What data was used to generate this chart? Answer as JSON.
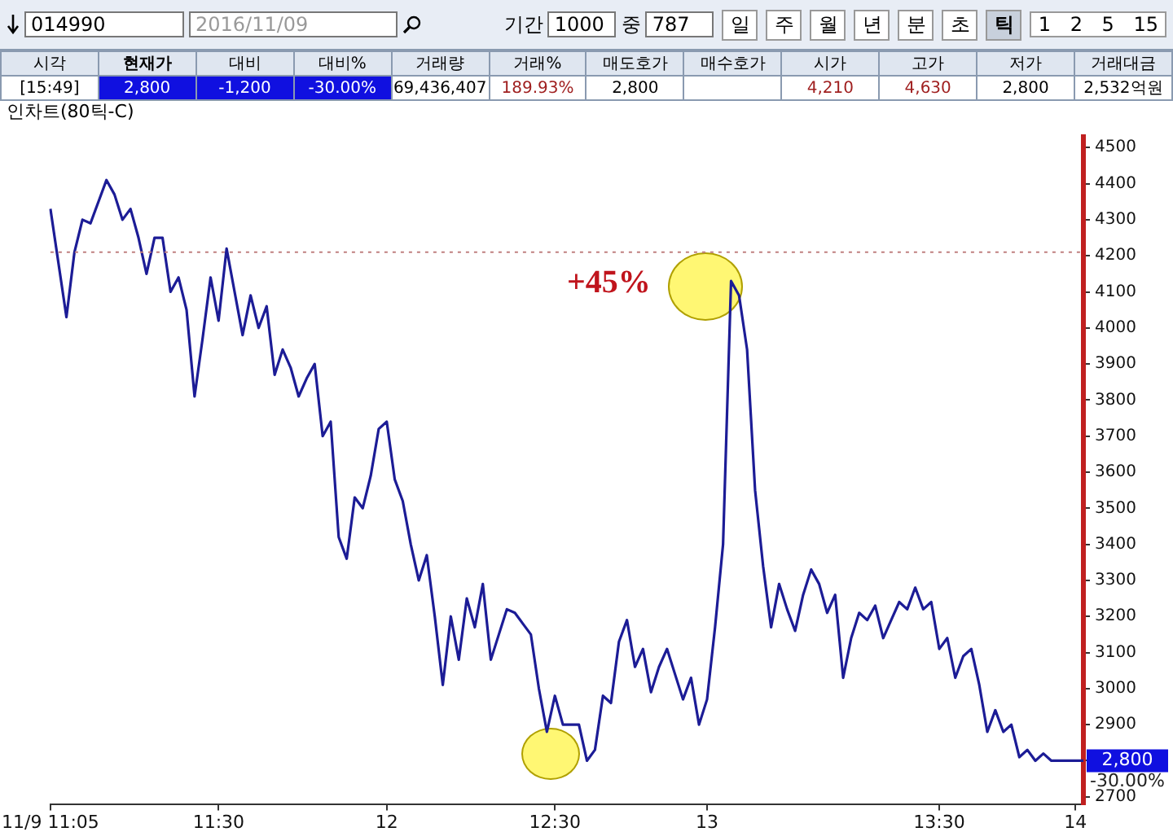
{
  "chart_data": {
    "type": "line",
    "annotations": [
      "014990",
      "2016/11/09",
      "기간",
      "1000",
      "중",
      "787",
      "일",
      "주",
      "월",
      "년",
      "분",
      "초",
      "틱",
      "1 2 5 15",
      "시각",
      "현재가",
      "대비",
      "대비%",
      "거래량",
      "거래%",
      "매도호가",
      "매수호가",
      "시가",
      "고가",
      "저가",
      "거래대금",
      "[15:49]",
      "2,800",
      "-1,200",
      "-30.00%",
      "69,436,407",
      "189.93%",
      "2,800",
      "4,210",
      "4,630",
      "2,800",
      "2,532억원",
      "인차트(80틱-C)",
      "+45%",
      "2,800",
      "-30.00%"
    ],
    "categories": [
      "11/9 11:05",
      null,
      null,
      null,
      null,
      null,
      null,
      null,
      null,
      null,
      null,
      null,
      null,
      null,
      null,
      null,
      null,
      null,
      null,
      null,
      null,
      "11:30",
      null,
      null,
      null,
      null,
      null,
      null,
      null,
      null,
      null,
      null,
      null,
      null,
      null,
      null,
      null,
      null,
      null,
      null,
      null,
      null,
      "12",
      null,
      null,
      null,
      null,
      null,
      null,
      null,
      null,
      null,
      null,
      null,
      null,
      null,
      null,
      null,
      null,
      null,
      null,
      null,
      null,
      "12:30",
      null,
      null,
      null,
      null,
      null,
      null,
      null,
      null,
      null,
      null,
      null,
      null,
      null,
      null,
      null,
      null,
      null,
      null,
      "13",
      null,
      null,
      null,
      null,
      null,
      null,
      null,
      null,
      null,
      null,
      null,
      null,
      null,
      null,
      null,
      null,
      null,
      null,
      null,
      null,
      null,
      null,
      null,
      null,
      null,
      null,
      null,
      null,
      "13:30",
      null,
      null,
      null,
      null,
      null,
      null,
      null,
      null,
      null,
      null,
      null,
      null,
      null,
      null,
      null,
      null,
      "14",
      null
    ],
    "values": [
      4330,
      4180,
      4030,
      4210,
      4300,
      4290,
      4350,
      4410,
      4370,
      4300,
      4330,
      4250,
      4150,
      4250,
      4250,
      4100,
      4140,
      4050,
      3810,
      3970,
      4140,
      4020,
      4220,
      4100,
      3980,
      4090,
      4000,
      4060,
      3870,
      3940,
      3890,
      3810,
      3860,
      3900,
      3700,
      3740,
      3420,
      3360,
      3530,
      3500,
      3590,
      3720,
      3740,
      3580,
      3520,
      3400,
      3300,
      3370,
      3200,
      3010,
      3200,
      3080,
      3250,
      3170,
      3290,
      3080,
      3150,
      3220,
      3210,
      3180,
      3150,
      3000,
      2880,
      2980,
      2900,
      2900,
      2900,
      2800,
      2830,
      2980,
      2960,
      3130,
      3190,
      3060,
      3110,
      2990,
      3060,
      3110,
      3040,
      2970,
      3030,
      2900,
      2970,
      3170,
      3400,
      4130,
      4090,
      3940,
      3550,
      3340,
      3170,
      3290,
      3220,
      3160,
      3260,
      3330,
      3290,
      3210,
      3260,
      3030,
      3140,
      3210,
      3190,
      3230,
      3140,
      3190,
      3240,
      3220,
      3280,
      3220,
      3240,
      3110,
      3140,
      3030,
      3090,
      3110,
      3010,
      2880,
      2940,
      2880,
      2900,
      2810,
      2830,
      2800,
      2820,
      2800,
      2800,
      2800,
      2800,
      2800
    ],
    "color": "#1c1c96",
    "ylim": [
      2680,
      4530
    ],
    "yticks": [
      2700,
      {
        "value": 2800,
        "label": null
      },
      2900,
      3000,
      3100,
      3200,
      3300,
      3400,
      3500,
      3600,
      3700,
      3800,
      3900,
      4000,
      4100,
      4200,
      4300,
      4400,
      4500
    ],
    "ref_lines": [
      {
        "axis": "y",
        "value": 4210,
        "line_style": "dotted",
        "color": "#c08080"
      }
    ],
    "marker": "none",
    "line_style": "solid",
    "grid": false,
    "legend": false
  }
}
